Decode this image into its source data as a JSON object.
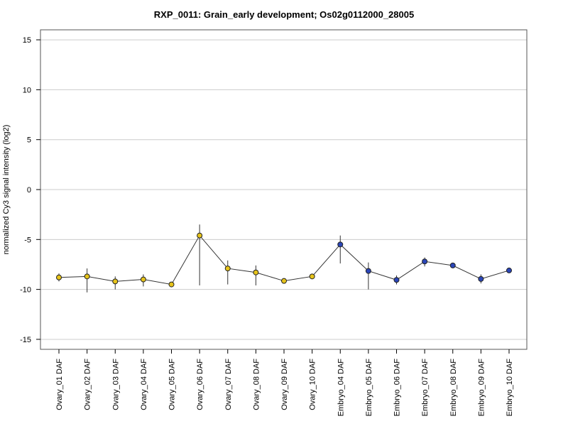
{
  "chart_data": {
    "type": "line",
    "title": "RXP_0011: Grain_early development; Os02g0112000_28005",
    "xlabel": "",
    "ylabel": "normalized Cy3 signal intensity (log2)",
    "ylim": [
      -16,
      16
    ],
    "yticks": [
      -15,
      -10,
      -5,
      0,
      5,
      10,
      15
    ],
    "ytick_labels": [
      "-15",
      "-10",
      "-5",
      "0",
      "5",
      "10",
      "15"
    ],
    "grid": true,
    "legend": "none",
    "categories": [
      "Ovary_01 DAF",
      "Ovary_02 DAF",
      "Ovary_03 DAF",
      "Ovary_04 DAF",
      "Ovary_05 DAF",
      "Ovary_06 DAF",
      "Ovary_07 DAF",
      "Ovary_08 DAF",
      "Ovary_09 DAF",
      "Ovary_10 DAF",
      "Embryo_04 DAF",
      "Embryo_05 DAF",
      "Embryo_06 DAF",
      "Embryo_07 DAF",
      "Embryo_08 DAF",
      "Embryo_09 DAF",
      "Embryo_10 DAF"
    ],
    "values": [
      -8.8,
      -8.7,
      -9.2,
      -9.0,
      -9.5,
      -4.6,
      -7.9,
      -8.3,
      -9.15,
      -8.7,
      -5.5,
      -8.15,
      -9.05,
      -7.2,
      -7.6,
      -8.95,
      -8.1
    ],
    "error_low": [
      -9.2,
      -10.3,
      -10.0,
      -9.7,
      -9.6,
      -9.6,
      -9.5,
      -9.6,
      -9.25,
      -8.8,
      -7.4,
      -10.0,
      -9.5,
      -7.7,
      -7.7,
      -9.4,
      -8.3
    ],
    "error_high": [
      -8.4,
      -7.9,
      -8.7,
      -8.5,
      -9.3,
      -3.5,
      -7.1,
      -7.6,
      -9.05,
      -8.5,
      -4.6,
      -7.3,
      -8.6,
      -6.8,
      -7.5,
      -8.5,
      -7.9
    ],
    "point_colors": [
      "#e6c31a",
      "#e6c31a",
      "#e6c31a",
      "#e6c31a",
      "#e6c31a",
      "#e6c31a",
      "#e6c31a",
      "#e6c31a",
      "#e6c31a",
      "#e6c31a",
      "#2b46b8",
      "#2b46b8",
      "#2b46b8",
      "#2b46b8",
      "#2b46b8",
      "#2b46b8",
      "#2b46b8"
    ],
    "colors": {
      "ovary": "#e6c31a",
      "embryo": "#2b46b8",
      "line": "#333333",
      "grid": "#cccccc"
    }
  }
}
